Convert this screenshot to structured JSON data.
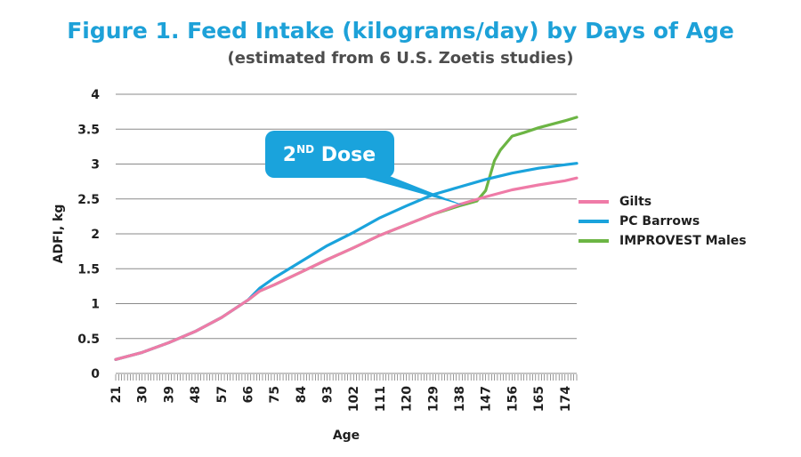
{
  "title": "Figure 1. Feed Intake (kilograms/day) by Days of Age",
  "subtitle": "(estimated from 6 U.S. Zoetis studies)",
  "annotation": {
    "text": "2ND Dose",
    "main": "2",
    "sup": "ND",
    "rest": " Dose",
    "fill": "#1aa3dc",
    "points_to_age": 140,
    "points_to_value": 2.4
  },
  "colors": {
    "gilts": "#ef7ba7",
    "barrows": "#1aa3dc",
    "improvest": "#6cb544",
    "grid": "#8a8a8a",
    "axis_text": "#1f1f1f"
  },
  "chart_data": {
    "type": "line",
    "title": "Figure 1. Feed Intake (kilograms/day) by Days of Age",
    "subtitle": "(estimated from 6 U.S. Zoetis studies)",
    "xlabel": "Age",
    "ylabel": "ADFI, kg",
    "xlim": [
      21,
      178
    ],
    "ylim": [
      0,
      4
    ],
    "x_ticks": [
      21,
      30,
      39,
      48,
      57,
      66,
      75,
      84,
      93,
      102,
      111,
      120,
      129,
      138,
      147,
      156,
      165,
      174
    ],
    "y_ticks": [
      0,
      0.5,
      1,
      1.5,
      2,
      2.5,
      3,
      3.5,
      4
    ],
    "y_tick_labels": [
      "0",
      "0.5",
      "1",
      "1.5",
      "2",
      "2.5",
      "3",
      "3.5",
      "4"
    ],
    "grid": "horizontal",
    "legend_position": "right",
    "series": [
      {
        "name": "Gilts",
        "color": "#ef7ba7",
        "x": [
          21,
          30,
          39,
          48,
          57,
          66,
          70,
          75,
          84,
          93,
          102,
          111,
          120,
          129,
          138,
          147,
          156,
          165,
          174,
          178
        ],
        "y": [
          0.2,
          0.3,
          0.44,
          0.6,
          0.8,
          1.05,
          1.18,
          1.27,
          1.45,
          1.63,
          1.8,
          1.98,
          2.13,
          2.28,
          2.42,
          2.53,
          2.63,
          2.7,
          2.76,
          2.8
        ]
      },
      {
        "name": "PC Barrows",
        "color": "#1aa3dc",
        "x": [
          21,
          30,
          39,
          48,
          57,
          66,
          70,
          75,
          84,
          93,
          102,
          111,
          120,
          129,
          138,
          147,
          156,
          165,
          174,
          178
        ],
        "y": [
          0.2,
          0.3,
          0.44,
          0.6,
          0.8,
          1.05,
          1.22,
          1.37,
          1.6,
          1.83,
          2.02,
          2.23,
          2.4,
          2.56,
          2.67,
          2.78,
          2.87,
          2.94,
          2.99,
          3.01
        ]
      },
      {
        "name": "IMPROVEST Males",
        "color": "#6cb544",
        "x": [
          21,
          30,
          39,
          48,
          57,
          66,
          70,
          75,
          84,
          93,
          102,
          111,
          120,
          129,
          138,
          144,
          147,
          150,
          152,
          156,
          160,
          165,
          174,
          178
        ],
        "y": [
          0.2,
          0.3,
          0.44,
          0.6,
          0.8,
          1.05,
          1.18,
          1.27,
          1.45,
          1.63,
          1.8,
          1.98,
          2.13,
          2.28,
          2.4,
          2.47,
          2.62,
          3.05,
          3.2,
          3.4,
          3.45,
          3.52,
          3.62,
          3.67
        ]
      }
    ]
  }
}
